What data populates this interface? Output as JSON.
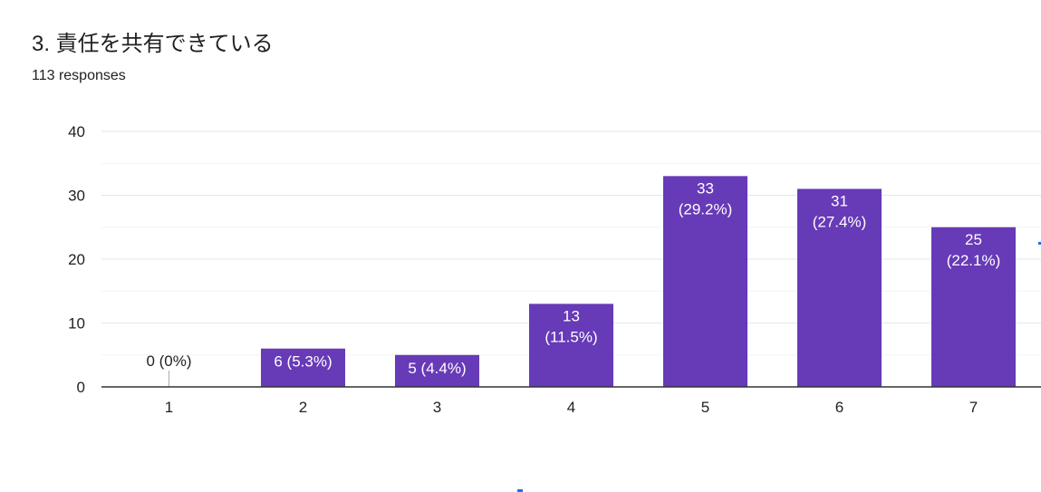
{
  "header": {
    "question_title": "3. 責任を共有できている",
    "response_count": "113 responses"
  },
  "colors": {
    "bar": "#673ab7",
    "gridline_major": "#e6e6e6",
    "gridline_minor": "#f3f3f3",
    "axis": "#333333",
    "label_inside": "#ffffff",
    "label_outside": "#222222"
  },
  "chart_data": {
    "type": "bar",
    "title": "",
    "xlabel": "",
    "ylabel": "",
    "categories": [
      "1",
      "2",
      "3",
      "4",
      "5",
      "6",
      "7"
    ],
    "values": [
      0,
      6,
      5,
      13,
      33,
      31,
      25
    ],
    "data_labels": [
      [
        "0 (0%)"
      ],
      [
        "6 (5.3%)"
      ],
      [
        "5 (4.4%)"
      ],
      [
        "13",
        "(11.5%)"
      ],
      [
        "33",
        "(29.2%)"
      ],
      [
        "31",
        "(27.4%)"
      ],
      [
        "25",
        "(22.1%)"
      ]
    ],
    "ylim": [
      0,
      40
    ],
    "yticks": [
      0,
      10,
      20,
      30,
      40
    ],
    "grid": true,
    "legend": "none"
  }
}
